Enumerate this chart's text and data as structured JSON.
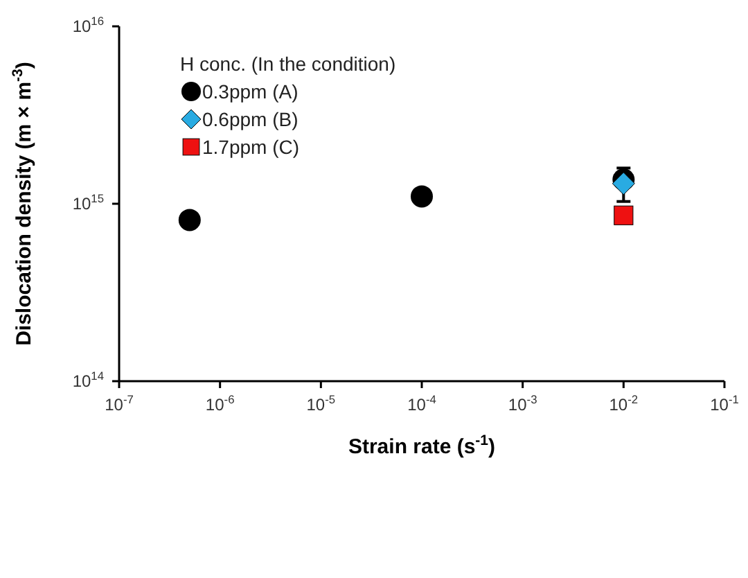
{
  "chart_data": {
    "type": "scatter",
    "xlabel": "Strain rate (s$^{-1}$)",
    "ylabel": "Dislocation density (m × m$^{-3}$)",
    "legend_title": "H conc. (In the condition)",
    "log": "xy",
    "xlim": [
      1e-07,
      0.1
    ],
    "ylim": [
      100000000000000.0,
      1e+16
    ],
    "xticks": [
      {
        "value": 1e-07,
        "label": "10$^{-7}$"
      },
      {
        "value": 1e-06,
        "label": "10$^{-6}$"
      },
      {
        "value": 1e-05,
        "label": "10$^{-5}$"
      },
      {
        "value": 0.0001,
        "label": "10$^{-4}$"
      },
      {
        "value": 0.001,
        "label": "10$^{-3}$"
      },
      {
        "value": 0.01,
        "label": "10$^{-2}$"
      },
      {
        "value": 0.1,
        "label": "10$^{-1}$"
      }
    ],
    "yticks": [
      {
        "value": 100000000000000.0,
        "label": "10$^{14}$"
      },
      {
        "value": 1000000000000000.0,
        "label": "10$^{15}$"
      },
      {
        "value": 1e+16,
        "label": "10$^{16}$"
      }
    ],
    "grid": false,
    "legend": "top left",
    "series": [
      {
        "name": "0.3ppm (A)",
        "color": "#000000",
        "marker": "circle",
        "x": [
          5e-07,
          0.0001,
          0.01
        ],
        "values": [
          810000000000000.0,
          1100000000000000.0,
          1370000000000000.0
        ]
      },
      {
        "name": "0.6ppm (B)",
        "color": "#29abe2",
        "marker": "diamond",
        "x": [
          0.01
        ],
        "values": [
          1300000000000000.0
        ],
        "errors": [
          [
            1030000000000000.0,
            1590000000000000.0
          ]
        ]
      },
      {
        "name": "1.7ppm (C)",
        "color": "#ee1111",
        "marker": "square",
        "x": [
          0.01
        ],
        "values": [
          860000000000000.0
        ],
        "errors": [
          [
            780000000000000.0,
            940000000000000.0
          ]
        ]
      }
    ]
  }
}
